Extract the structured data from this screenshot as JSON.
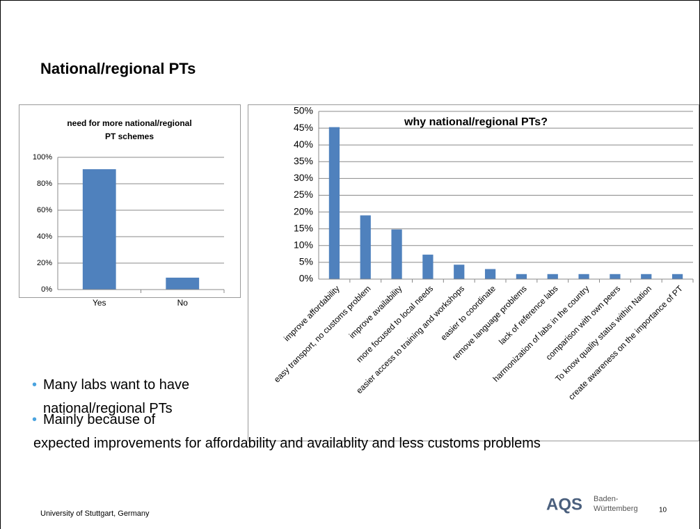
{
  "title": "National/regional PTs",
  "chart_data": [
    {
      "type": "bar",
      "title": "need for more national/regional PT schemes",
      "categories": [
        "Yes",
        "No"
      ],
      "values": [
        91,
        9
      ],
      "color": "#4f81bd",
      "ylim": [
        0,
        100
      ],
      "yticks": [
        {
          "value": 0,
          "label": "0%"
        },
        {
          "value": 20,
          "label": "20%"
        },
        {
          "value": 40,
          "label": "40%"
        },
        {
          "value": 60,
          "label": "60%"
        },
        {
          "value": 80,
          "label": "80%"
        },
        {
          "value": 100,
          "label": "100%"
        }
      ],
      "grid": true
    },
    {
      "type": "bar",
      "title": "why national/regional PTs?",
      "categories": [
        "improve affordability",
        "easy transport, no customs problem",
        "improve availability",
        "more focused to local needs",
        "easier access to training and workshops",
        "easier to coordinate",
        "remove language problems",
        "lack of reference labs",
        "harmonization of labs in the country",
        "comparison with own peers",
        "To know quality status within Nation",
        "create awareness on the importance of PT"
      ],
      "values": [
        45.3,
        19,
        14.8,
        7.3,
        4.3,
        3,
        1.5,
        1.5,
        1.5,
        1.5,
        1.5,
        1.5
      ],
      "color": "#4f81bd",
      "ylim": [
        0,
        50
      ],
      "yticks": [
        {
          "value": 0,
          "label": "0%"
        },
        {
          "value": 5,
          "label": "5%"
        },
        {
          "value": 10,
          "label": "10%"
        },
        {
          "value": 15,
          "label": "15%"
        },
        {
          "value": 20,
          "label": "20%"
        },
        {
          "value": 25,
          "label": "25%"
        },
        {
          "value": 30,
          "label": "30%"
        },
        {
          "value": 35,
          "label": "35%"
        },
        {
          "value": 40,
          "label": "40%"
        },
        {
          "value": 45,
          "label": "45%"
        },
        {
          "value": 50,
          "label": "50%"
        }
      ],
      "grid": true
    }
  ],
  "bullets": [
    "Many labs want to have national/regional PTs",
    "Mainly because of expected improvements for affordability and availablity and less customs problems"
  ],
  "footer": "University of Stuttgart, Germany",
  "logo": {
    "mark": "AQS",
    "line1": "Baden-",
    "line2": "Württemberg"
  },
  "page_number": "10"
}
